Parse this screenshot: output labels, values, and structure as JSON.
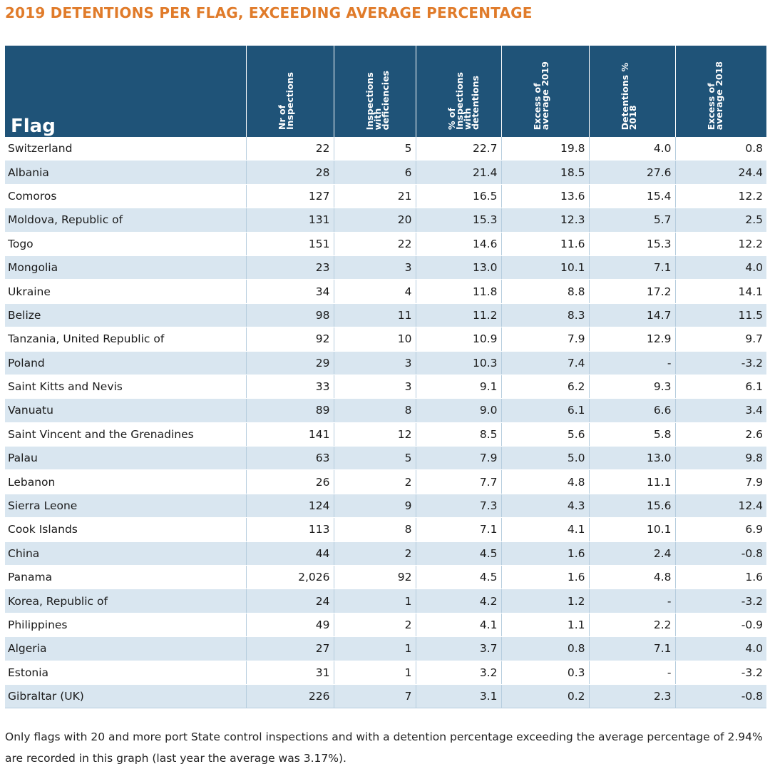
{
  "title": "2019 DETENTIONS PER FLAG, EXCEEDING AVERAGE PERCENTAGE",
  "colors": {
    "title": "#e07b2a",
    "header_bg": "#1f5378",
    "stripe": "#d9e6f0"
  },
  "table": {
    "flag_header": "Flag",
    "columns": [
      "Nr of\nInspections",
      "Inspections\nwith\ndeficiencies",
      "% of\nInspections\nwith\ndetentions",
      "Excess of\naverage 2019",
      "Detentions %\n2018",
      "Excess of\naverage 2018"
    ],
    "rows": [
      [
        "Switzerland",
        "22",
        "5",
        "22.7",
        "19.8",
        "4.0",
        "0.8"
      ],
      [
        "Albania",
        "28",
        "6",
        "21.4",
        "18.5",
        "27.6",
        "24.4"
      ],
      [
        "Comoros",
        "127",
        "21",
        "16.5",
        "13.6",
        "15.4",
        "12.2"
      ],
      [
        "Moldova, Republic of",
        "131",
        "20",
        "15.3",
        "12.3",
        "5.7",
        "2.5"
      ],
      [
        "Togo",
        "151",
        "22",
        "14.6",
        "11.6",
        "15.3",
        "12.2"
      ],
      [
        "Mongolia",
        "23",
        "3",
        "13.0",
        "10.1",
        "7.1",
        "4.0"
      ],
      [
        "Ukraine",
        "34",
        "4",
        "11.8",
        "8.8",
        "17.2",
        "14.1"
      ],
      [
        "Belize",
        "98",
        "11",
        "11.2",
        "8.3",
        "14.7",
        "11.5"
      ],
      [
        "Tanzania, United Republic of",
        "92",
        "10",
        "10.9",
        "7.9",
        "12.9",
        "9.7"
      ],
      [
        "Poland",
        "29",
        "3",
        "10.3",
        "7.4",
        "-",
        "-3.2"
      ],
      [
        "Saint Kitts and Nevis",
        "33",
        "3",
        "9.1",
        "6.2",
        "9.3",
        "6.1"
      ],
      [
        "Vanuatu",
        "89",
        "8",
        "9.0",
        "6.1",
        "6.6",
        "3.4"
      ],
      [
        "Saint Vincent and the Grenadines",
        "141",
        "12",
        "8.5",
        "5.6",
        "5.8",
        "2.6"
      ],
      [
        "Palau",
        "63",
        "5",
        "7.9",
        "5.0",
        "13.0",
        "9.8"
      ],
      [
        "Lebanon",
        "26",
        "2",
        "7.7",
        "4.8",
        "11.1",
        "7.9"
      ],
      [
        "Sierra Leone",
        "124",
        "9",
        "7.3",
        "4.3",
        "15.6",
        "12.4"
      ],
      [
        "Cook Islands",
        "113",
        "8",
        "7.1",
        "4.1",
        "10.1",
        "6.9"
      ],
      [
        "China",
        "44",
        "2",
        "4.5",
        "1.6",
        "2.4",
        "-0.8"
      ],
      [
        "Panama",
        "2,026",
        "92",
        "4.5",
        "1.6",
        "4.8",
        "1.6"
      ],
      [
        "Korea, Republic of",
        "24",
        "1",
        "4.2",
        "1.2",
        "-",
        "-3.2"
      ],
      [
        "Philippines",
        "49",
        "2",
        "4.1",
        "1.1",
        "2.2",
        "-0.9"
      ],
      [
        "Algeria",
        "27",
        "1",
        "3.7",
        "0.8",
        "7.1",
        "4.0"
      ],
      [
        "Estonia",
        "31",
        "1",
        "3.2",
        "0.3",
        "-",
        "-3.2"
      ],
      [
        "Gibraltar (UK)",
        "226",
        "7",
        "3.1",
        "0.2",
        "2.3",
        "-0.8"
      ]
    ]
  },
  "footnote": "Only flags with 20 and more port State control inspections  and with a detention percentage exceeding the average percentage of 2.94% are recorded in this graph (last year the average was 3.17%)."
}
